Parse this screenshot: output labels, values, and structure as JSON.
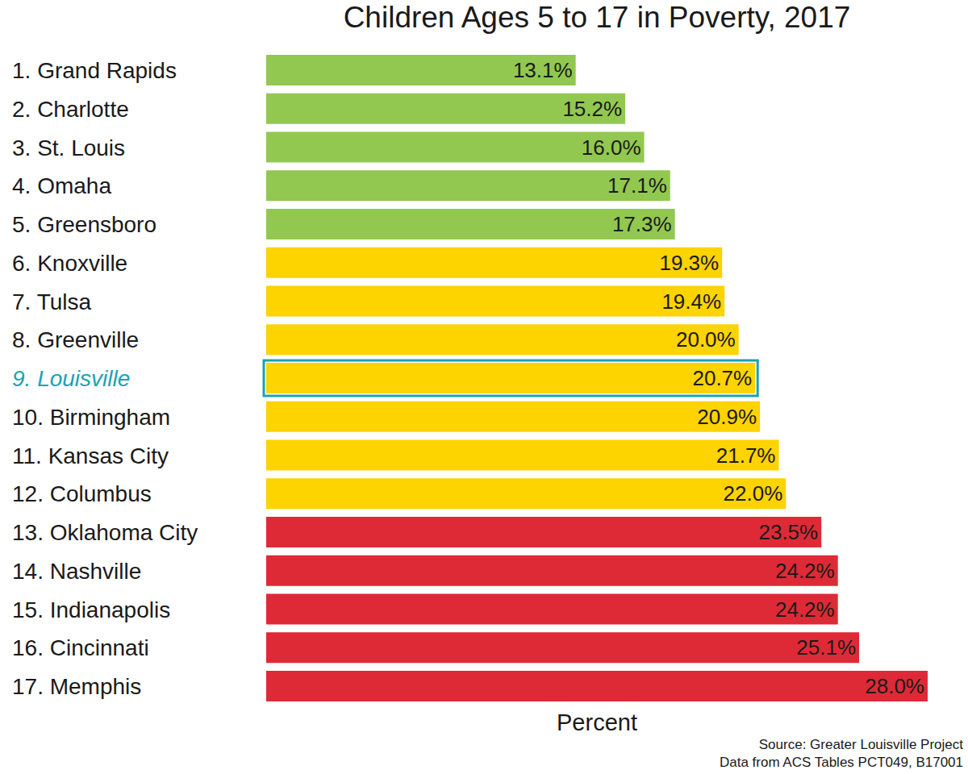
{
  "chart_data": {
    "type": "bar",
    "orientation": "horizontal",
    "title": "Children Ages 5 to 17 in Poverty, 2017",
    "x_label": "Percent",
    "annotations": [
      "Source: Greater Louisville Project",
      "Data from ACS Tables PCT049, B17001"
    ],
    "categories": [
      "1. Grand Rapids",
      "2. Charlotte",
      "3. St. Louis",
      "4. Omaha",
      "5. Greensboro",
      "6. Knoxville",
      "7. Tulsa",
      "8. Greenville",
      "9. Louisville",
      "10. Birmingham",
      "11. Kansas City",
      "12. Columbus",
      "13. Oklahoma City",
      "14. Nashville",
      "15. Indianapolis",
      "16. Cincinnati",
      "17. Memphis"
    ],
    "values": [
      13.1,
      15.2,
      16.0,
      17.1,
      17.3,
      19.3,
      19.4,
      20.0,
      20.7,
      20.9,
      21.7,
      22.0,
      23.5,
      24.2,
      24.2,
      25.1,
      28.0
    ],
    "value_labels": [
      "13.1%",
      "15.2%",
      "16.0%",
      "17.1%",
      "17.3%",
      "19.3%",
      "19.4%",
      "20.0%",
      "20.7%",
      "20.9%",
      "21.7%",
      "22.0%",
      "23.5%",
      "24.2%",
      "24.2%",
      "25.1%",
      "28.0%"
    ],
    "colors": [
      "#92c850",
      "#92c850",
      "#92c850",
      "#92c850",
      "#92c850",
      "#fdd300",
      "#fdd300",
      "#fdd300",
      "#fdd300",
      "#fdd300",
      "#fdd300",
      "#fdd300",
      "#de2a36",
      "#de2a36",
      "#de2a36",
      "#de2a36",
      "#de2a36"
    ],
    "xlim": [
      0,
      28
    ],
    "data_labels": true,
    "tick_labels": "y",
    "grid": false
  }
}
